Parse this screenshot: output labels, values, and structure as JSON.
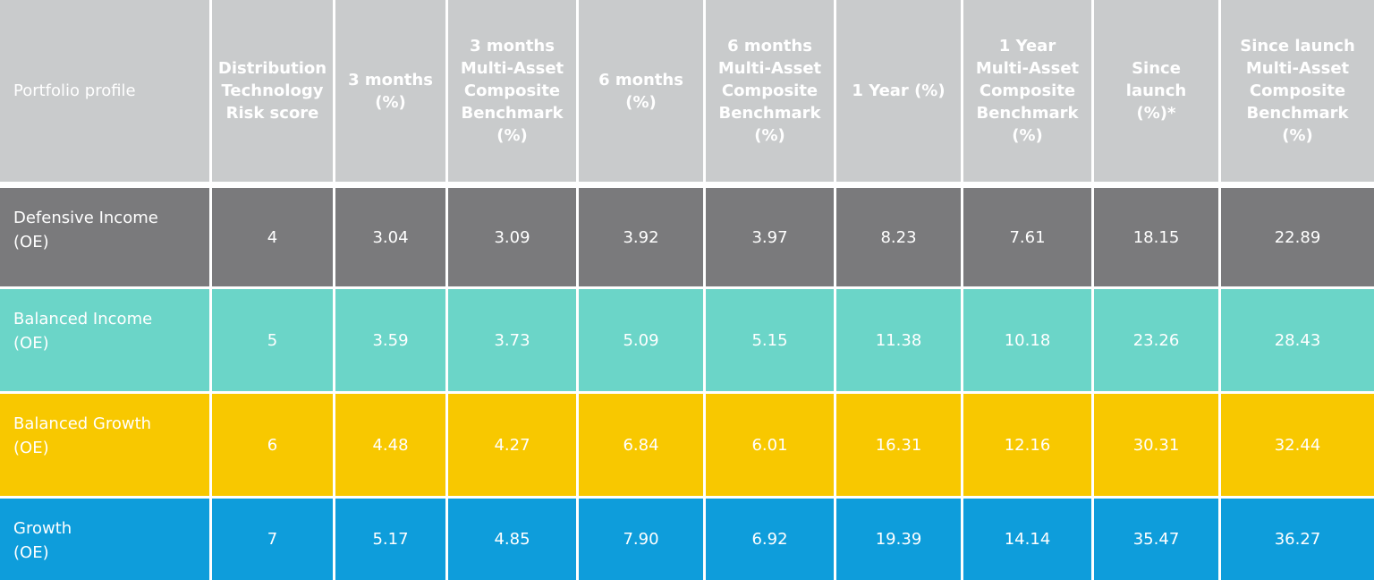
{
  "headers": [
    [
      "Portfolio profile"
    ],
    [
      "Distribution",
      "Technology",
      "Risk score"
    ],
    [
      "3 months",
      "(%)"
    ],
    [
      "3 months",
      "Multi-Asset",
      "Composite",
      "Benchmark",
      "(%)"
    ],
    [
      "6 months (%)"
    ],
    [
      "6 months",
      "Multi-Asset",
      "Composite",
      "Benchmark",
      "(%)"
    ],
    [
      "1 Year (%)"
    ],
    [
      "1 Year",
      "Multi-Asset",
      "Composite",
      "Benchmark",
      "(%)"
    ],
    [
      "Since launch",
      "(%)*"
    ],
    [
      "Since launch",
      "Multi-Asset",
      "Composite",
      "Benchmark",
      "(%)"
    ]
  ],
  "rows": [
    {
      "name_line1": "Defensive Income",
      "name_line2": "(OE)",
      "color": "#7a7a7c",
      "values": [
        "4",
        "3.04",
        "3.09",
        "3.92",
        "3.97",
        "8.23",
        "7.61",
        "18.15",
        "22.89"
      ]
    },
    {
      "name_line1": "Balanced Income",
      "name_line2": "(OE)",
      "color": "#6bd5c8",
      "values": [
        "5",
        "3.59",
        "3.73",
        "5.09",
        "5.15",
        "11.38",
        "10.18",
        "23.26",
        "28.43"
      ]
    },
    {
      "name_line1": "Balanced Growth",
      "name_line2": "(OE)",
      "color": "#f8c800",
      "values": [
        "6",
        "4.48",
        "4.27",
        "6.84",
        "6.01",
        "16.31",
        "12.16",
        "30.31",
        "32.44"
      ]
    },
    {
      "name_line1": "Growth",
      "name_line2": "(OE)",
      "color": "#0e9ddb",
      "values": [
        "7",
        "5.17",
        "4.85",
        "7.90",
        "6.92",
        "19.39",
        "14.14",
        "35.47",
        "36.27"
      ]
    }
  ],
  "colors": {
    "header_bg": "#c9cbcc",
    "text": "#ffffff"
  }
}
